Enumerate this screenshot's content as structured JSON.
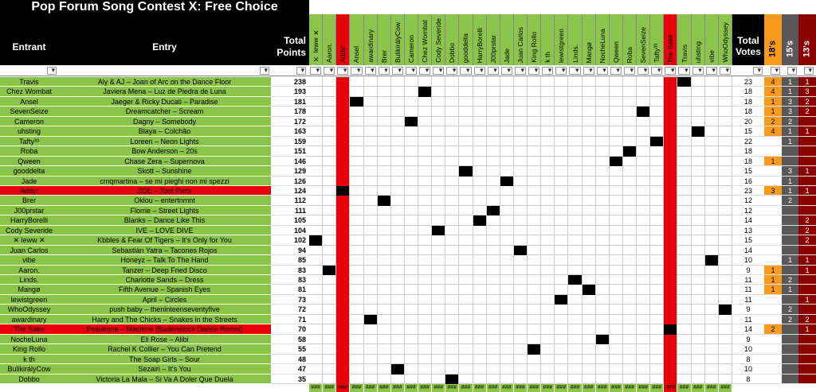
{
  "title": "Pop Forum Song Contest X: Free Choice",
  "headers": {
    "entrant": "Entrant",
    "entry": "Entry",
    "total_points": "Total Points",
    "total_votes": "Total Votes",
    "c18": "18's",
    "c15": "15's",
    "c13": "13's"
  },
  "voters": [
    "✕ leww ✕",
    "Aaron.",
    "Addy!",
    "Ansel",
    "awardinary",
    "Brer",
    "BulikirályCow",
    "Cameron",
    "Chez Wombat",
    "Cody Severide",
    "Dobbo",
    "gooddelta",
    "HarryBorelli",
    "J00prstar",
    "Jade",
    "Juan Carlos",
    "King Rollo",
    "k th",
    "lewistgreen",
    "Linds.",
    "Mangø",
    "NocheLuna",
    "Qween",
    "Roba",
    "SevenSeize",
    "Tafty³³",
    "The Sake",
    "Travis",
    "uhsting",
    "vibe",
    "WhoOdyssey"
  ],
  "rows": [
    {
      "entrant": "Travis",
      "entry": "Aly & AJ – Joan of Arc on the Dance Floor",
      "points": "238",
      "votes": "23",
      "c18": "4",
      "c15": "1",
      "c13": "1"
    },
    {
      "entrant": "Chez Wombat",
      "entry": "Javiera Mena – Luz de Piedra de Luna",
      "points": "193",
      "votes": "18",
      "c18": "4",
      "c15": "1",
      "c13": "3"
    },
    {
      "entrant": "Ansel",
      "entry": "Jaeger & Ricky Ducati – Paradise",
      "points": "181",
      "votes": "18",
      "c18": "1",
      "c15": "3",
      "c13": "2"
    },
    {
      "entrant": "SevenSeize",
      "entry": "Dreamcatcher – Scream",
      "points": "178",
      "votes": "18",
      "c18": "1",
      "c15": "3",
      "c13": "2"
    },
    {
      "entrant": "Cameron",
      "entry": "Dagny – Somebody",
      "points": "172",
      "votes": "20",
      "c18": "2",
      "c15": "2",
      "c13": ""
    },
    {
      "entrant": "uhsting",
      "entry": "Blaya – Colchão",
      "points": "163",
      "votes": "15",
      "c18": "4",
      "c15": "1",
      "c13": "1"
    },
    {
      "entrant": "Tafty³³",
      "entry": "Loreen – Neon Lights",
      "points": "159",
      "votes": "22",
      "c18": "",
      "c15": "1",
      "c13": ""
    },
    {
      "entrant": "Roba",
      "entry": "Bow Anderson – 20s",
      "points": "151",
      "votes": "18",
      "c18": "",
      "c15": "",
      "c13": ""
    },
    {
      "entrant": "Qween",
      "entry": "Chase Zera – Supernova",
      "points": "146",
      "votes": "18",
      "c18": "1",
      "c15": "",
      "c13": ""
    },
    {
      "entrant": "gooddelta",
      "entry": "Skott – Sunshine",
      "points": "129",
      "votes": "15",
      "c18": "",
      "c15": "3",
      "c13": "1"
    },
    {
      "entrant": "Jade",
      "entry": "cmqmartina – se mi pieghi non mi spezzi",
      "points": "126",
      "votes": "16",
      "c18": "",
      "c15": "1",
      "c13": ""
    },
    {
      "entrant": "Addy!",
      "entry": "ZOE – Tout Paris",
      "points": "124",
      "votes": "23",
      "c18": "3",
      "c15": "1",
      "c13": "1",
      "red": true
    },
    {
      "entrant": "Brer",
      "entry": "Oklou – entertnmnt",
      "points": "112",
      "votes": "12",
      "c18": "",
      "c15": "2",
      "c13": ""
    },
    {
      "entrant": "J00prstar",
      "entry": "Florrie – Street Lights",
      "points": "111",
      "votes": "12",
      "c18": "",
      "c15": "",
      "c13": ""
    },
    {
      "entrant": "HarryBorelli",
      "entry": "Blanks – Dance Like This",
      "points": "105",
      "votes": "14",
      "c18": "",
      "c15": "",
      "c13": "2"
    },
    {
      "entrant": "Cody Severide",
      "entry": "IVE – LOVE DIVE",
      "points": "104",
      "votes": "13",
      "c18": "",
      "c15": "",
      "c13": "2"
    },
    {
      "entrant": "✕ leww ✕",
      "entry": "Kbbles & Fear Of Tigers – It's Only for You",
      "points": "102",
      "votes": "15",
      "c18": "",
      "c15": "",
      "c13": "2"
    },
    {
      "entrant": "Juan Carlos",
      "entry": "Sebastián Yatra – Tacones Rojos",
      "points": "94",
      "votes": "14",
      "c18": "",
      "c15": "",
      "c13": ""
    },
    {
      "entrant": "vibe",
      "entry": "Honeyz – Talk To The Hand",
      "points": "85",
      "votes": "10",
      "c18": "",
      "c15": "1",
      "c13": "1"
    },
    {
      "entrant": "Aaron.",
      "entry": "Tanzer – Deep Fried Disco",
      "points": "83",
      "votes": "9",
      "c18": "1",
      "c15": "",
      "c13": "1"
    },
    {
      "entrant": "Linds.",
      "entry": "Charlotte Sands – Dress",
      "points": "83",
      "votes": "11",
      "c18": "1",
      "c15": "2",
      "c13": ""
    },
    {
      "entrant": "Mangø",
      "entry": "Fifth Avenue – Spanish Eyes",
      "points": "81",
      "votes": "11",
      "c18": "1",
      "c15": "1",
      "c13": ""
    },
    {
      "entrant": "lewistgreen",
      "entry": "April – Circles",
      "points": "73",
      "votes": "11",
      "c18": "",
      "c15": "",
      "c13": "1"
    },
    {
      "entrant": "WhoOdyssey",
      "entry": "push baby – theninteenseventyfive",
      "points": "72",
      "votes": "9",
      "c18": "",
      "c15": "2",
      "c13": ""
    },
    {
      "entrant": "awardinary",
      "entry": "Harry and The Chicks – Snakes in the Streets",
      "points": "71",
      "votes": "11",
      "c18": "",
      "c15": "2",
      "c13": "2"
    },
    {
      "entrant": "The Sake",
      "entry": "Pesukone – Machine (Badenstock Dance Remix)",
      "points": "70",
      "votes": "14",
      "c18": "2",
      "c15": "",
      "c13": "1",
      "red": true
    },
    {
      "entrant": "NocheLuna",
      "entry": "Eli Rose – Alibi",
      "points": "58",
      "votes": "9",
      "c18": "",
      "c15": "",
      "c13": ""
    },
    {
      "entrant": "King Rollo",
      "entry": "Rachel K Collier – You Can Pretend",
      "points": "55",
      "votes": "10",
      "c18": "",
      "c15": "",
      "c13": ""
    },
    {
      "entrant": "k th",
      "entry": "The Soap Girls – Sour",
      "points": "48",
      "votes": "8",
      "c18": "",
      "c15": "",
      "c13": ""
    },
    {
      "entrant": "BulikirályCow",
      "entry": "Sezairi – It's You",
      "points": "47",
      "votes": "10",
      "c18": "",
      "c15": "",
      "c13": ""
    },
    {
      "entrant": "Dobbo",
      "entry": "Victoria La Mala – Si Va A Doler Que Duela",
      "points": "35",
      "votes": "8",
      "c18": "",
      "c15": "",
      "c13": ""
    }
  ],
  "footer_cell": "###",
  "colors": {
    "green": "#8ac44a",
    "red": "#e8000b",
    "orange": "#f79a1e",
    "grey": "#595959",
    "darkred": "#8b0000",
    "black": "#000000"
  }
}
